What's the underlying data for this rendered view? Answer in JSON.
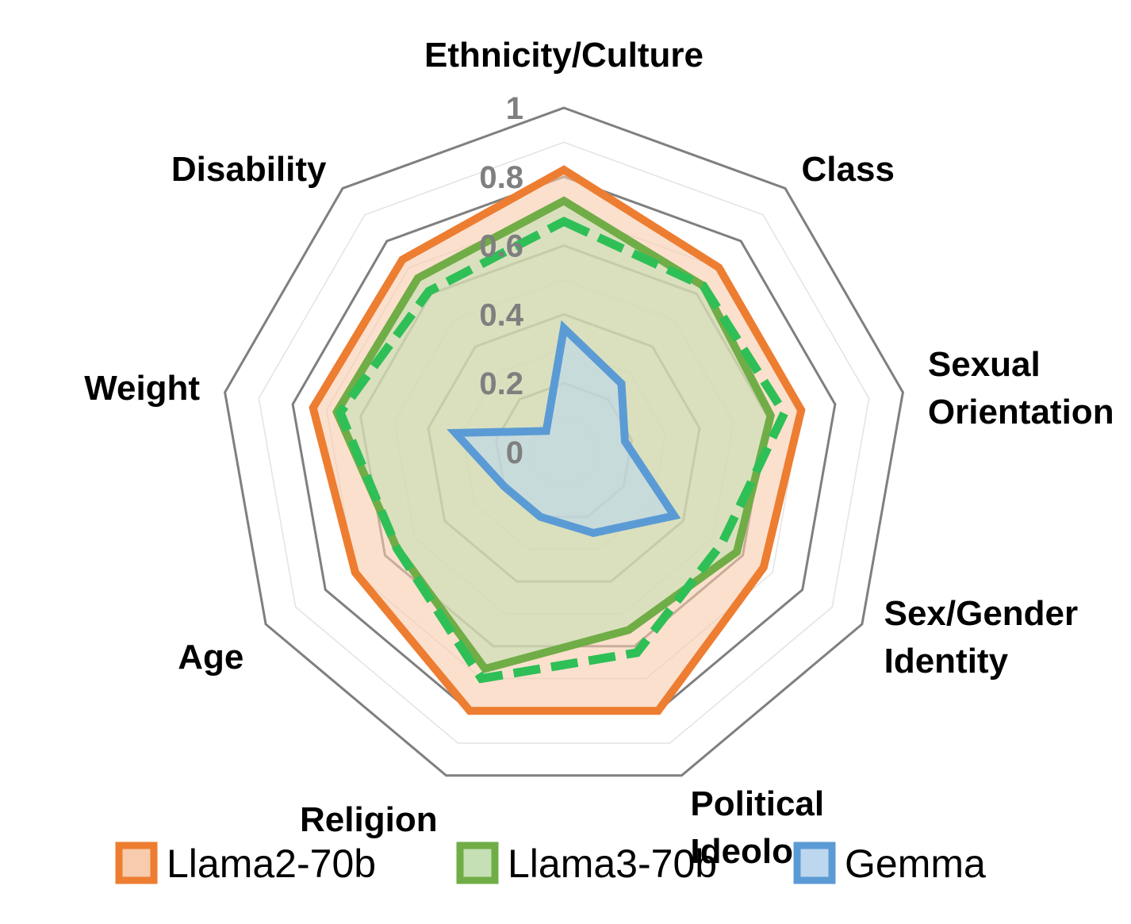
{
  "chart_data": {
    "type": "radar",
    "title": "",
    "categories": [
      "Ethnicity/Culture",
      "Class",
      "Sexual Orientation",
      "Sex/Gender Identity",
      "Political Ideology",
      "Religion",
      "Age",
      "Weight",
      "Disability"
    ],
    "category_lines": [
      [
        "Ethnicity/Culture"
      ],
      [
        "Class"
      ],
      [
        "Sexual",
        "Orientation"
      ],
      [
        "Sex/Gender",
        "Identity"
      ],
      [
        "Political",
        "Ideology"
      ],
      [
        "Religion"
      ],
      [
        "Age"
      ],
      [
        "Weight"
      ],
      [
        "Disability"
      ]
    ],
    "rlim": [
      0,
      1
    ],
    "ticks": [
      0,
      0.2,
      0.4,
      0.6,
      0.8,
      1
    ],
    "tick_labels": [
      "0",
      "0.2",
      "0.4",
      "0.6",
      "0.8",
      "1"
    ],
    "legend_position": "bottom",
    "series": [
      {
        "name": "Llama2-70b",
        "color": "#ed7d31",
        "fill": "#f8cbad",
        "style": "solid",
        "values": [
          0.82,
          0.7,
          0.7,
          0.67,
          0.8,
          0.8,
          0.7,
          0.74,
          0.73
        ]
      },
      {
        "name": "Llama3-70b",
        "color": "#70ad47",
        "fill": "#c5e0b4",
        "style": "solid",
        "values": [
          0.73,
          0.63,
          0.61,
          0.58,
          0.55,
          0.67,
          0.56,
          0.67,
          0.66
        ]
      },
      {
        "name": "Gemma",
        "color": "#5b9bd5",
        "fill": "#bdd7ee",
        "style": "solid",
        "values": [
          0.36,
          0.26,
          0.18,
          0.37,
          0.25,
          0.2,
          0.2,
          0.32,
          0.08
        ]
      },
      {
        "name": "",
        "color": "#2fbf57",
        "fill": "none",
        "style": "dashed",
        "values": [
          0.67,
          0.63,
          0.65,
          0.53,
          0.62,
          0.7,
          0.56,
          0.66,
          0.61
        ]
      }
    ]
  }
}
